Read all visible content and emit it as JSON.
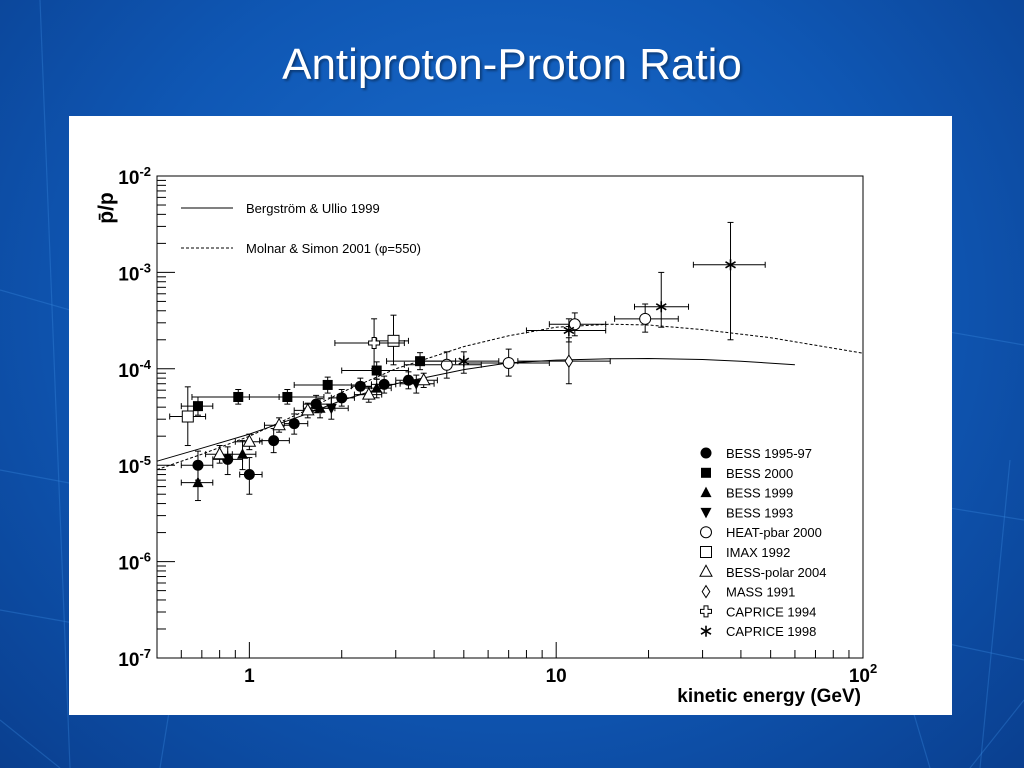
{
  "slide": {
    "title": "Antiproton-Proton Ratio"
  },
  "chart_data": {
    "type": "scatter",
    "title": "",
    "xlabel": "kinetic energy (GeV)",
    "ylabel": "p̄/p",
    "xscale": "log",
    "yscale": "log",
    "xlim": [
      0.5,
      100
    ],
    "ylim": [
      1e-07,
      0.01
    ],
    "x_ticks": [
      {
        "value": 1,
        "label": "1"
      },
      {
        "value": 10,
        "label": "10"
      },
      {
        "value": 100,
        "base": "10",
        "exp": "2"
      }
    ],
    "y_ticks": [
      {
        "value": 0.01,
        "base": "10",
        "exp": "-2"
      },
      {
        "value": 0.001,
        "base": "10",
        "exp": "-3"
      },
      {
        "value": 0.0001,
        "base": "10",
        "exp": "-4"
      },
      {
        "value": 1e-05,
        "base": "10",
        "exp": "-5"
      },
      {
        "value": 1e-06,
        "base": "10",
        "exp": "-6"
      },
      {
        "value": 1e-07,
        "base": "10",
        "exp": "-7"
      }
    ],
    "legend_position": "bottom-right",
    "models": [
      {
        "name": "Bergström & Ullio 1999",
        "style": "solid",
        "points": [
          [
            0.5,
            1.1e-05
          ],
          [
            0.7,
            1.5e-05
          ],
          [
            1,
            2.1e-05
          ],
          [
            1.5,
            3.3e-05
          ],
          [
            2,
            4.7e-05
          ],
          [
            3,
            7e-05
          ],
          [
            5,
            9.8e-05
          ],
          [
            7,
            0.000115
          ],
          [
            10,
            0.000123
          ],
          [
            15,
            0.000127
          ],
          [
            20,
            0.000128
          ],
          [
            30,
            0.000125
          ],
          [
            40,
            0.00012
          ],
          [
            60,
            0.00011
          ]
        ]
      },
      {
        "name": "Molnar & Simon 2001 (φ=550)",
        "style": "dashed",
        "points": [
          [
            0.5,
            9e-06
          ],
          [
            0.7,
            1.3e-05
          ],
          [
            1,
            2e-05
          ],
          [
            1.5,
            3.6e-05
          ],
          [
            2,
            5.7e-05
          ],
          [
            3,
            0.0001
          ],
          [
            5,
            0.00017
          ],
          [
            7,
            0.00022
          ],
          [
            10,
            0.00027
          ],
          [
            15,
            0.00029
          ],
          [
            20,
            0.000285
          ],
          [
            30,
            0.000255
          ],
          [
            50,
            0.00021
          ],
          [
            100,
            0.000145
          ]
        ]
      }
    ],
    "series": [
      {
        "name": "BESS 1995-97",
        "marker": "filled-circle",
        "points": [
          {
            "x": 0.68,
            "y": 1e-05,
            "xlo": 0.6,
            "xhi": 0.76,
            "ylo": 7e-06,
            "yhi": 1.4e-05
          },
          {
            "x": 0.85,
            "y": 1.15e-05,
            "xlo": 0.76,
            "xhi": 0.95,
            "ylo": 8e-06,
            "yhi": 1.55e-05
          },
          {
            "x": 1.0,
            "y": 8e-06,
            "xlo": 0.93,
            "xhi": 1.1,
            "ylo": 5e-06,
            "yhi": 1.2e-05
          },
          {
            "x": 1.2,
            "y": 1.8e-05,
            "xlo": 1.08,
            "xhi": 1.35,
            "ylo": 1.35e-05,
            "yhi": 2.4e-05
          },
          {
            "x": 1.4,
            "y": 2.7e-05,
            "xlo": 1.3,
            "xhi": 1.55,
            "ylo": 2.1e-05,
            "yhi": 3.4e-05
          },
          {
            "x": 1.65,
            "y": 4.3e-05,
            "xlo": 1.5,
            "xhi": 1.85,
            "ylo": 3.5e-05,
            "yhi": 5.3e-05
          },
          {
            "x": 2.0,
            "y": 5e-05,
            "xlo": 1.85,
            "xhi": 2.2,
            "ylo": 4.1e-05,
            "yhi": 6.1e-05
          },
          {
            "x": 2.3,
            "y": 6.6e-05,
            "xlo": 2.15,
            "xhi": 2.5,
            "ylo": 5.4e-05,
            "yhi": 8e-05
          },
          {
            "x": 2.75,
            "y": 6.9e-05,
            "xlo": 2.5,
            "xhi": 3.0,
            "ylo": 5.6e-05,
            "yhi": 8.4e-05
          },
          {
            "x": 3.3,
            "y": 7.6e-05,
            "xlo": 3.0,
            "xhi": 3.7,
            "ylo": 6.2e-05,
            "yhi": 9.3e-05
          }
        ]
      },
      {
        "name": "BESS 2000",
        "marker": "filled-square",
        "points": [
          {
            "x": 0.68,
            "y": 4.1e-05,
            "xlo": 0.6,
            "xhi": 0.76,
            "ylo": 3.3e-05,
            "yhi": 5.1e-05
          },
          {
            "x": 0.92,
            "y": 5.1e-05,
            "xlo": 0.65,
            "xhi": 1.25,
            "ylo": 4.3e-05,
            "yhi": 6.1e-05
          },
          {
            "x": 1.33,
            "y": 5.1e-05,
            "xlo": 1.0,
            "xhi": 1.75,
            "ylo": 4.3e-05,
            "yhi": 6.1e-05
          },
          {
            "x": 1.8,
            "y": 6.8e-05,
            "xlo": 1.4,
            "xhi": 2.3,
            "ylo": 5.6e-05,
            "yhi": 8.2e-05
          },
          {
            "x": 2.6,
            "y": 9.6e-05,
            "xlo": 2.0,
            "xhi": 3.3,
            "ylo": 7.8e-05,
            "yhi": 0.000118
          },
          {
            "x": 3.6,
            "y": 0.00012,
            "xlo": 2.8,
            "xhi": 4.7,
            "ylo": 9.8e-05,
            "yhi": 0.000147
          }
        ]
      },
      {
        "name": "BESS 1999",
        "marker": "filled-triangle-up",
        "points": [
          {
            "x": 0.68,
            "y": 6.6e-06,
            "xlo": 0.6,
            "xhi": 0.76,
            "ylo": 4.3e-06,
            "yhi": 1e-05
          },
          {
            "x": 0.95,
            "y": 1.3e-05,
            "xlo": 0.85,
            "xhi": 1.05,
            "ylo": 9e-06,
            "yhi": 1.8e-05
          },
          {
            "x": 1.7,
            "y": 3.9e-05,
            "xlo": 1.5,
            "xhi": 1.9,
            "ylo": 3.1e-05,
            "yhi": 4.9e-05
          },
          {
            "x": 2.6,
            "y": 6.3e-05,
            "xlo": 2.3,
            "xhi": 2.9,
            "ylo": 5e-05,
            "yhi": 7.8e-05
          }
        ]
      },
      {
        "name": "BESS 1993",
        "marker": "filled-triangle-down",
        "points": [
          {
            "x": 1.85,
            "y": 3.9e-05,
            "xlo": 1.6,
            "xhi": 2.1,
            "ylo": 3e-05,
            "yhi": 5e-05
          },
          {
            "x": 3.5,
            "y": 7e-05,
            "xlo": 3.1,
            "xhi": 4.0,
            "ylo": 5.6e-05,
            "yhi": 8.6e-05
          }
        ]
      },
      {
        "name": "HEAT-pbar 2000",
        "marker": "open-circle",
        "points": [
          {
            "x": 4.4,
            "y": 0.00011,
            "xlo": 3.2,
            "xhi": 5.7,
            "ylo": 8e-05,
            "yhi": 0.00015
          },
          {
            "x": 7.0,
            "y": 0.000115,
            "xlo": 5.0,
            "xhi": 9.5,
            "ylo": 8.4e-05,
            "yhi": 0.00016
          },
          {
            "x": 11.5,
            "y": 0.00029,
            "xlo": 9.5,
            "xhi": 14.5,
            "ylo": 0.00022,
            "yhi": 0.00038
          },
          {
            "x": 19.5,
            "y": 0.00033,
            "xlo": 15.5,
            "xhi": 25,
            "ylo": 0.00024,
            "yhi": 0.00047
          }
        ]
      },
      {
        "name": "IMAX 1992",
        "marker": "open-square",
        "points": [
          {
            "x": 0.63,
            "y": 3.2e-05,
            "xlo": 0.55,
            "xhi": 0.72,
            "ylo": 1.6e-05,
            "yhi": 6.5e-05
          },
          {
            "x": 2.95,
            "y": 0.000195,
            "xlo": 2.6,
            "xhi": 3.3,
            "ylo": 0.00011,
            "yhi": 0.00036
          }
        ]
      },
      {
        "name": "BESS-polar 2004",
        "marker": "open-triangle-up",
        "points": [
          {
            "x": 0.8,
            "y": 1.3e-05,
            "xlo": 0.72,
            "xhi": 0.88,
            "ylo": 1.05e-05,
            "yhi": 1.6e-05
          },
          {
            "x": 1.0,
            "y": 1.75e-05,
            "xlo": 0.9,
            "xhi": 1.1,
            "ylo": 1.45e-05,
            "yhi": 2.1e-05
          },
          {
            "x": 1.25,
            "y": 2.6e-05,
            "xlo": 1.12,
            "xhi": 1.38,
            "ylo": 2.2e-05,
            "yhi": 3.1e-05
          },
          {
            "x": 1.55,
            "y": 3.7e-05,
            "xlo": 1.4,
            "xhi": 1.72,
            "ylo": 3.1e-05,
            "yhi": 4.4e-05
          },
          {
            "x": 2.45,
            "y": 5.4e-05,
            "xlo": 2.2,
            "xhi": 2.7,
            "ylo": 4.5e-05,
            "yhi": 6.5e-05
          },
          {
            "x": 3.7,
            "y": 7.6e-05,
            "xlo": 3.3,
            "xhi": 4.1,
            "ylo": 6.4e-05,
            "yhi": 9e-05
          }
        ]
      },
      {
        "name": "MASS 1991",
        "marker": "open-diamond",
        "points": [
          {
            "x": 11.0,
            "y": 0.00012,
            "xlo": 7.5,
            "xhi": 15,
            "ylo": 7e-05,
            "yhi": 0.00021
          }
        ]
      },
      {
        "name": "CAPRICE 1994",
        "marker": "open-cross",
        "points": [
          {
            "x": 2.55,
            "y": 0.000185,
            "xlo": 1.9,
            "xhi": 3.2,
            "ylo": 0.0001,
            "yhi": 0.00033
          }
        ]
      },
      {
        "name": "CAPRICE 1998",
        "marker": "star",
        "points": [
          {
            "x": 5.0,
            "y": 0.00012,
            "xlo": 3.5,
            "xhi": 6.5,
            "ylo": 9e-05,
            "yhi": 0.00015
          },
          {
            "x": 11.0,
            "y": 0.00025,
            "xlo": 8.0,
            "xhi": 14.5,
            "ylo": 0.00019,
            "yhi": 0.00033
          },
          {
            "x": 22.0,
            "y": 0.00044,
            "xlo": 18,
            "xhi": 27,
            "ylo": 0.00027,
            "yhi": 0.001
          },
          {
            "x": 37.0,
            "y": 0.0012,
            "xlo": 28,
            "xhi": 48,
            "ylo": 0.0002,
            "yhi": 0.0033
          }
        ]
      }
    ]
  }
}
